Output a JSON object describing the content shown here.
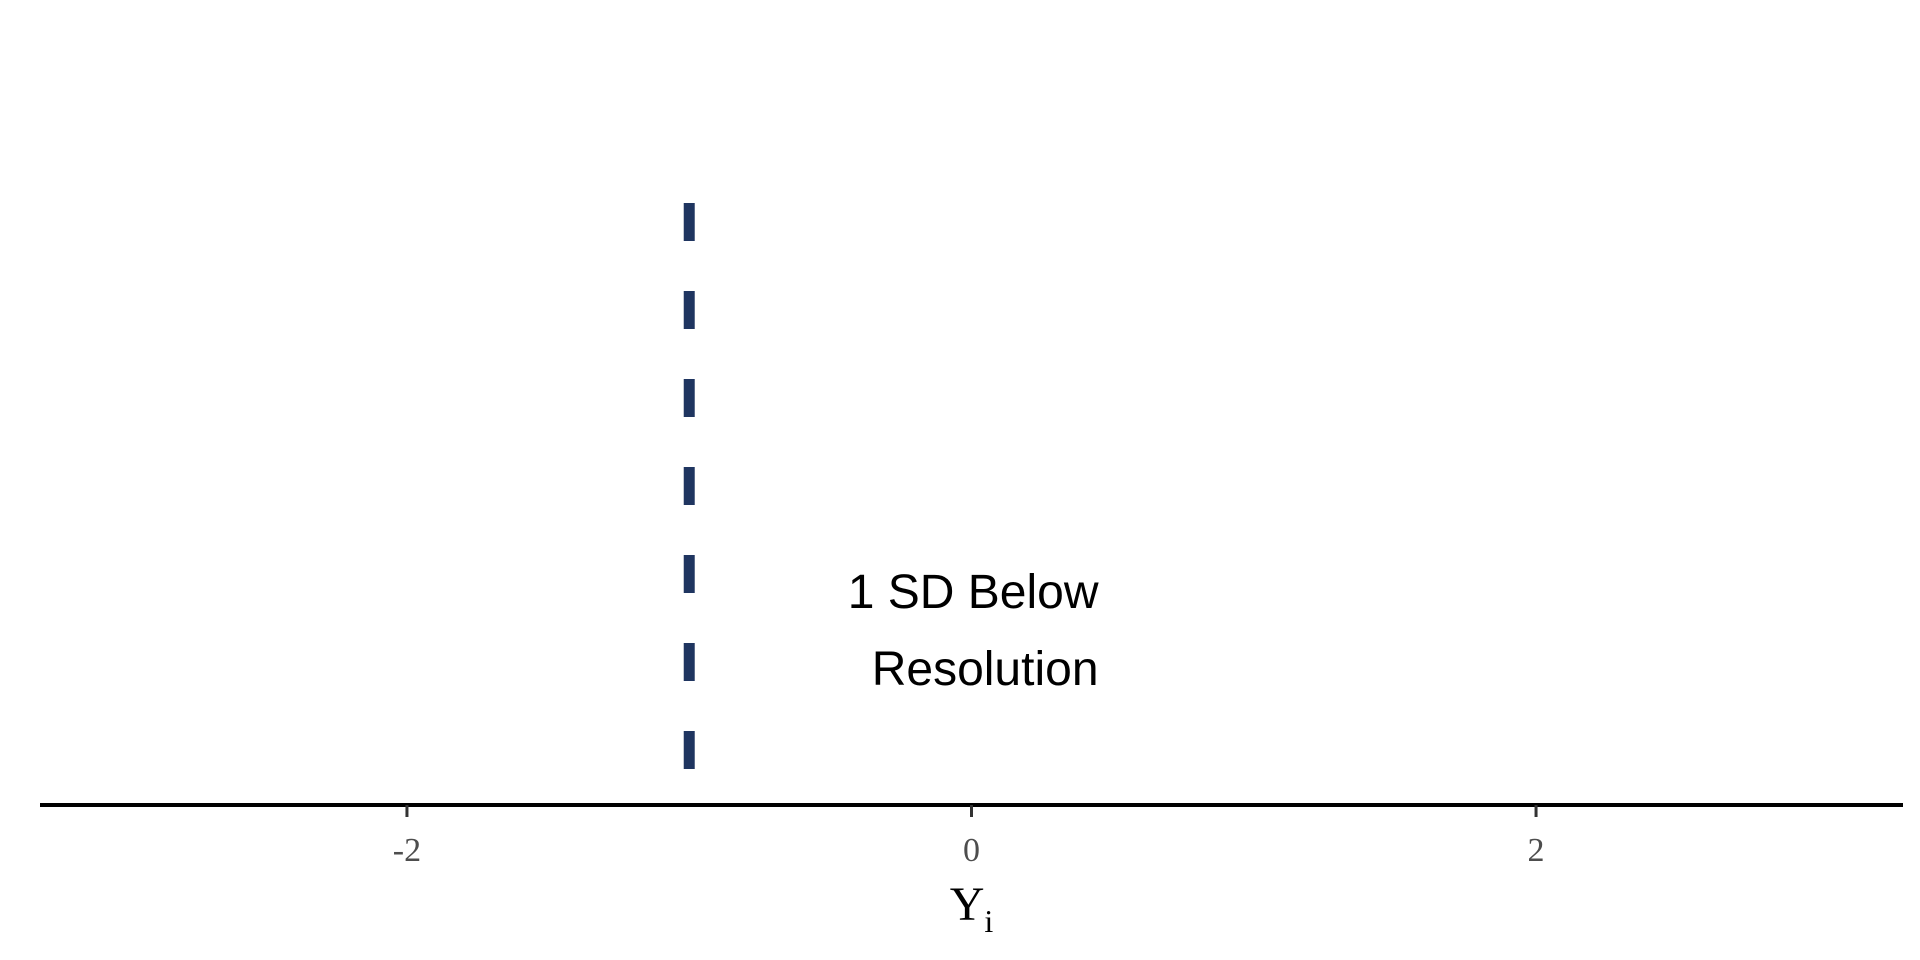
{
  "chart_data": {
    "type": "line",
    "title": "",
    "xlabel": "Y",
    "xlabel_subscript": "i",
    "ylabel": "",
    "xlim": [
      -3.3,
      3.3
    ],
    "xticks": [
      -2,
      0,
      2
    ],
    "xtick_labels": [
      "-2",
      "0",
      "2"
    ],
    "grid": false,
    "legend": "none",
    "vlines": [
      {
        "x": -1,
        "style": "dashed",
        "color": "#1f3560"
      }
    ],
    "annotations": [
      {
        "x": 0.45,
        "lines": [
          "1 SD Below",
          "Resolution"
        ]
      }
    ]
  },
  "colors": {
    "axis": "#000000",
    "tick": "#333333",
    "vline": "#1f3560"
  }
}
